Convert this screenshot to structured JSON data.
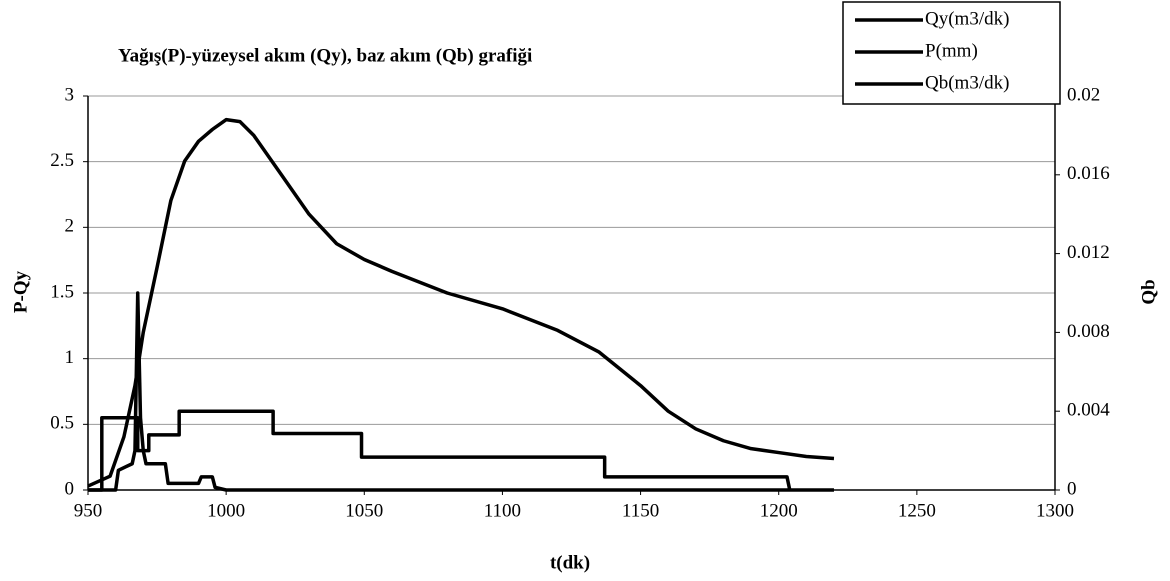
{
  "chart_data": {
    "type": "line",
    "title": "Yağış(P)-yüzeysel akım (Qy), baz akım (Qb) grafiği",
    "xlabel": "t(dk)",
    "ylabel": "P-Qy",
    "y2label": "Qb",
    "xlim": [
      950,
      1300
    ],
    "xticks": [
      950,
      1000,
      1050,
      1100,
      1150,
      1200,
      1250,
      1300
    ],
    "ylim": [
      0,
      3
    ],
    "yticks": [
      0,
      0.5,
      1,
      1.5,
      2,
      2.5,
      3
    ],
    "y2lim": [
      0,
      0.02
    ],
    "y2ticks": [
      0,
      0.004,
      0.008,
      0.012,
      0.016,
      0.02
    ],
    "grid": true,
    "legend": "top-right",
    "series": [
      {
        "name": "Qy(m3/dk)",
        "color": "#000000",
        "x": [
          950,
          960,
          961,
          966,
          967,
          968,
          969,
          970,
          971,
          972,
          978,
          979,
          990,
          991,
          995,
          996,
          1000,
          1020,
          1220
        ],
        "values": [
          0,
          0,
          0.15,
          0.2,
          0.3,
          1.5,
          0.55,
          0.3,
          0.2,
          0.2,
          0.2,
          0.05,
          0.05,
          0.1,
          0.1,
          0.02,
          0,
          0,
          0
        ]
      },
      {
        "name": "P(mm)",
        "color": "#000000",
        "x": [
          950,
          955,
          955,
          968,
          968,
          972,
          972,
          983,
          983,
          1017,
          1017,
          1049,
          1049,
          1137,
          1137,
          1203,
          1204
        ],
        "values": [
          0,
          0,
          0.55,
          0.55,
          0.3,
          0.3,
          0.42,
          0.42,
          0.6,
          0.6,
          0.43,
          0.43,
          0.25,
          0.25,
          0.1,
          0.1,
          0
        ]
      },
      {
        "name": "Qb(m3/dk)",
        "color": "#000000",
        "axis": "y2",
        "x": [
          950,
          958,
          963,
          967,
          970,
          975,
          980,
          985,
          990,
          995,
          1000,
          1005,
          1010,
          1020,
          1030,
          1040,
          1050,
          1060,
          1080,
          1100,
          1120,
          1135,
          1150,
          1160,
          1170,
          1180,
          1190,
          1200,
          1210,
          1220
        ],
        "values": [
          0.0002,
          0.0007,
          0.0027,
          0.0053,
          0.008,
          0.0113,
          0.0147,
          0.0167,
          0.0177,
          0.0183,
          0.0188,
          0.0187,
          0.018,
          0.016,
          0.014,
          0.0125,
          0.0117,
          0.0111,
          0.01,
          0.0092,
          0.0081,
          0.007,
          0.0053,
          0.004,
          0.0031,
          0.0025,
          0.0021,
          0.0019,
          0.0017,
          0.0016
        ]
      }
    ]
  }
}
